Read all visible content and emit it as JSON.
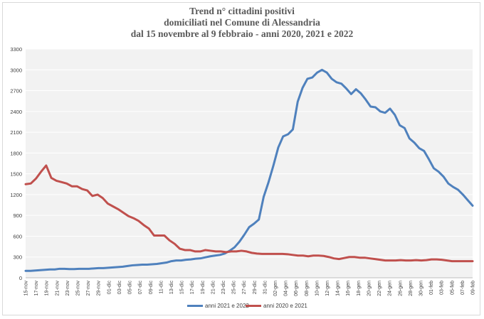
{
  "chart_data": {
    "type": "line",
    "title": [
      "Trend n° cittadini positivi",
      "domiciliati nel Comune di Alessandria",
      "dal 15 novembre al 9 febbraio - anni 2020, 2021 e 2022"
    ],
    "xlabel": "",
    "ylabel": "",
    "ylim": [
      0,
      3300
    ],
    "yticks": [
      0,
      300,
      600,
      900,
      1200,
      1500,
      1800,
      2100,
      2400,
      2700,
      3000,
      3300
    ],
    "grid": true,
    "legend_position": "bottom",
    "x_tick_labels": [
      "15-nov",
      "17-nov",
      "19-nov",
      "21-nov",
      "23-nov",
      "25-nov",
      "27-nov",
      "29-nov",
      "01-dic",
      "03-dic",
      "05-dic",
      "07-dic",
      "09-dic",
      "11-dic",
      "13-dic",
      "15-dic",
      "17-dic",
      "19-dic",
      "21-dic",
      "23-dic",
      "25-dic",
      "27-dic",
      "29-dic",
      "31-dic",
      "02-gen",
      "04-gen",
      "06-gen",
      "08-gen",
      "10-gen",
      "12-gen",
      "14-gen",
      "16-gen",
      "18-gen",
      "20-gen",
      "22-gen",
      "24-gen",
      "26-gen",
      "28-gen",
      "30-gen",
      "01-feb",
      "03-feb",
      "05-feb",
      "07-feb",
      "09-feb"
    ],
    "series": [
      {
        "name": "anni 2021 e 2022",
        "color": "#4f81bd",
        "values": [
          100,
          100,
          105,
          110,
          115,
          120,
          120,
          130,
          130,
          125,
          125,
          130,
          130,
          130,
          135,
          140,
          140,
          145,
          150,
          155,
          160,
          170,
          180,
          185,
          190,
          190,
          195,
          200,
          210,
          220,
          240,
          250,
          250,
          260,
          265,
          275,
          280,
          295,
          310,
          320,
          330,
          350,
          390,
          440,
          520,
          620,
          730,
          780,
          840,
          1170,
          1380,
          1620,
          1880,
          2040,
          2070,
          2140,
          2540,
          2740,
          2870,
          2890,
          2960,
          3000,
          2960,
          2870,
          2820,
          2800,
          2730,
          2650,
          2720,
          2660,
          2570,
          2470,
          2460,
          2400,
          2380,
          2440,
          2350,
          2200,
          2160,
          2010,
          1950,
          1870,
          1830,
          1710,
          1580,
          1530,
          1460,
          1360,
          1310,
          1270,
          1200,
          1120,
          1040
        ]
      },
      {
        "name": "anni 2020 e 2021",
        "color": "#c0504d",
        "values": [
          1350,
          1360,
          1430,
          1530,
          1620,
          1440,
          1400,
          1380,
          1360,
          1320,
          1320,
          1280,
          1260,
          1180,
          1200,
          1150,
          1070,
          1030,
          990,
          940,
          890,
          860,
          820,
          760,
          710,
          610,
          610,
          610,
          540,
          490,
          420,
          400,
          400,
          380,
          380,
          400,
          390,
          380,
          380,
          370,
          380,
          380,
          390,
          380,
          360,
          350,
          345,
          345,
          345,
          345,
          345,
          340,
          330,
          320,
          320,
          310,
          320,
          320,
          315,
          300,
          280,
          270,
          285,
          300,
          300,
          290,
          290,
          280,
          270,
          260,
          250,
          250,
          250,
          255,
          250,
          250,
          255,
          250,
          255,
          265,
          265,
          260,
          250,
          240,
          240,
          240,
          240,
          240
        ]
      }
    ]
  }
}
